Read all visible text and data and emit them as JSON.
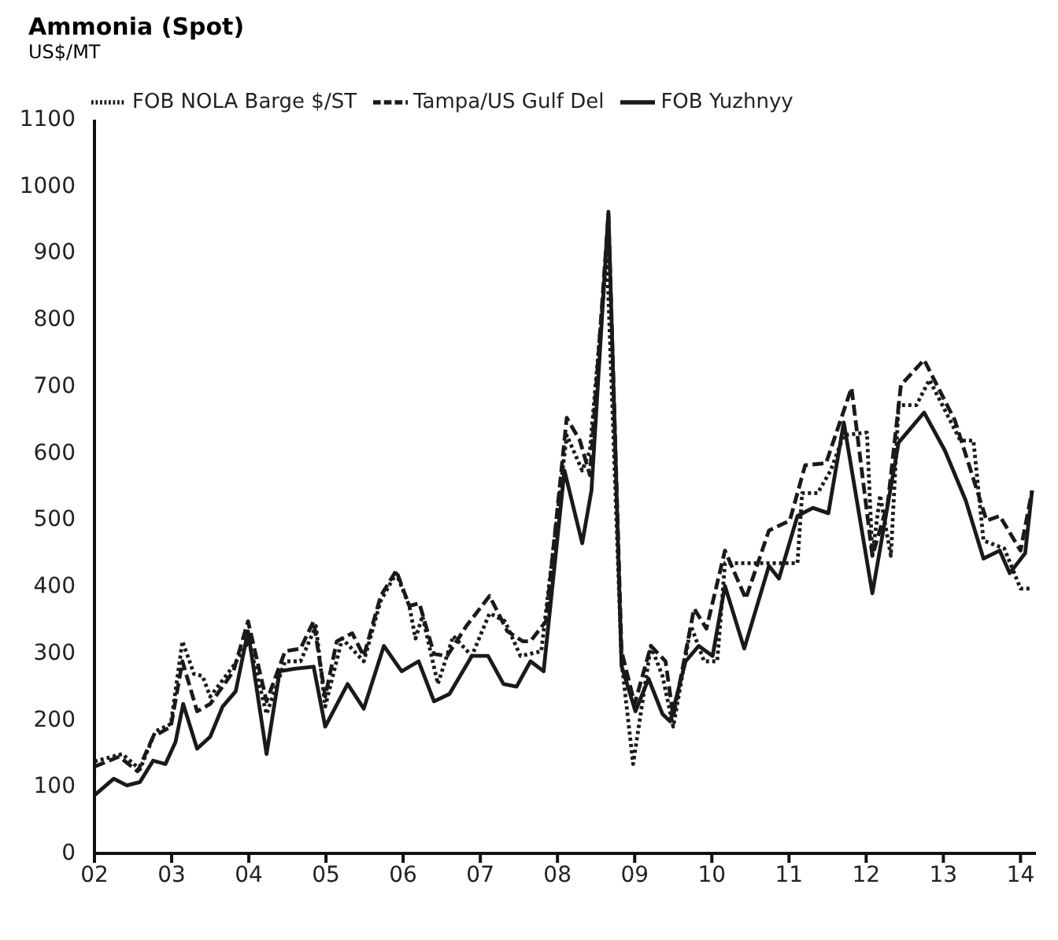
{
  "chart_data": {
    "type": "line",
    "title": "Ammonia (Spot)",
    "subtitle": "US$/MT",
    "xlim": [
      2002,
      2014.2
    ],
    "xticks": [
      {
        "value": 2002,
        "label": "02"
      },
      {
        "value": 2003,
        "label": "03"
      },
      {
        "value": 2004,
        "label": "04"
      },
      {
        "value": 2005,
        "label": "05"
      },
      {
        "value": 2006,
        "label": "06"
      },
      {
        "value": 2007,
        "label": "07"
      },
      {
        "value": 2008,
        "label": "08"
      },
      {
        "value": 2009,
        "label": "09"
      },
      {
        "value": 2010,
        "label": "10"
      },
      {
        "value": 2011,
        "label": "11"
      },
      {
        "value": 2012,
        "label": "12"
      },
      {
        "value": 2013,
        "label": "13"
      },
      {
        "value": 2014,
        "label": "14"
      }
    ],
    "ylim": [
      0,
      1100
    ],
    "yticks": [
      0,
      100,
      200,
      300,
      400,
      500,
      600,
      700,
      800,
      900,
      1000,
      1100
    ],
    "grid": false,
    "legend": "top left",
    "marker": "none",
    "series": [
      {
        "name": "FOB NOLA Barge $/ST",
        "color": "#1a1a1a",
        "line_style": "dotted",
        "x": [
          2002.0,
          2002.36,
          2002.59,
          2002.79,
          2002.99,
          2003.14,
          2003.29,
          2003.4,
          2003.5,
          2003.8,
          2004.0,
          2004.23,
          2004.47,
          2004.67,
          2004.87,
          2004.99,
          2005.21,
          2005.49,
          2005.71,
          2005.91,
          2006.08,
          2006.16,
          2006.25,
          2006.45,
          2006.65,
          2006.89,
          2007.12,
          2007.32,
          2007.52,
          2007.79,
          2008.12,
          2008.32,
          2008.42,
          2008.64,
          2008.83,
          2008.98,
          2009.21,
          2009.36,
          2009.5,
          2009.73,
          2009.9,
          2010.07,
          2010.17,
          2011.11,
          2011.17,
          2011.37,
          2011.54,
          2011.71,
          2012.01,
          2012.08,
          2012.18,
          2012.32,
          2012.42,
          2012.65,
          2012.82,
          2013.22,
          2013.39,
          2013.52,
          2013.79,
          2014.0,
          2014.15
        ],
        "values": [
          138,
          149,
          126,
          183,
          194,
          318,
          269,
          266,
          235,
          281,
          318,
          209,
          288,
          288,
          341,
          220,
          322,
          288,
          379,
          420,
          371,
          322,
          356,
          254,
          326,
          296,
          360,
          348,
          296,
          303,
          627,
          574,
          604,
          898,
          288,
          134,
          311,
          266,
          190,
          341,
          288,
          288,
          435,
          435,
          540,
          540,
          574,
          627,
          631,
          446,
          537,
          446,
          672,
          672,
          710,
          619,
          619,
          469,
          457,
          397,
          397
        ]
      },
      {
        "name": "Tampa/US Gulf Del",
        "color": "#1a1a1a",
        "line_style": "dashed",
        "x": [
          2002.0,
          2002.32,
          2002.56,
          2002.76,
          2002.99,
          2003.14,
          2003.33,
          2003.5,
          2003.8,
          2003.99,
          2004.23,
          2004.47,
          2004.67,
          2004.84,
          2004.99,
          2005.14,
          2005.34,
          2005.49,
          2005.71,
          2005.91,
          2006.08,
          2006.21,
          2006.4,
          2006.57,
          2006.82,
          2007.12,
          2007.35,
          2007.55,
          2007.65,
          2007.85,
          2008.12,
          2008.29,
          2008.42,
          2008.66,
          2008.83,
          2009.0,
          2009.21,
          2009.4,
          2009.5,
          2009.77,
          2009.93,
          2010.17,
          2010.44,
          2010.74,
          2011.01,
          2011.21,
          2011.48,
          2011.81,
          2012.08,
          2012.28,
          2012.45,
          2012.75,
          2013.15,
          2013.56,
          2013.73,
          2014.0,
          2014.15
        ],
        "values": [
          130,
          145,
          123,
          175,
          190,
          288,
          213,
          224,
          273,
          348,
          228,
          303,
          307,
          348,
          235,
          318,
          330,
          296,
          386,
          424,
          371,
          375,
          299,
          296,
          341,
          386,
          333,
          318,
          318,
          348,
          653,
          619,
          567,
          958,
          303,
          224,
          311,
          288,
          205,
          367,
          337,
          454,
          382,
          484,
          499,
          582,
          585,
          698,
          446,
          525,
          702,
          740,
          649,
          499,
          506,
          454,
          544
        ]
      },
      {
        "name": "FOB Yuzhnyy",
        "color": "#1a1a1a",
        "line_style": "solid",
        "x": [
          2002.0,
          2002.25,
          2002.42,
          2002.59,
          2002.76,
          2002.92,
          2003.05,
          2003.15,
          2003.33,
          2003.5,
          2003.66,
          2003.83,
          2003.99,
          2004.23,
          2004.4,
          2004.6,
          2004.84,
          2004.99,
          2005.28,
          2005.49,
          2005.75,
          2005.98,
          2006.2,
          2006.4,
          2006.6,
          2006.89,
          2007.1,
          2007.3,
          2007.47,
          2007.65,
          2007.82,
          2008.09,
          2008.32,
          2008.44,
          2008.66,
          2008.83,
          2009.01,
          2009.18,
          2009.36,
          2009.46,
          2009.66,
          2009.83,
          2010.01,
          2010.17,
          2010.42,
          2010.74,
          2010.87,
          2011.11,
          2011.31,
          2011.51,
          2011.71,
          2012.08,
          2012.42,
          2012.75,
          2013.02,
          2013.29,
          2013.52,
          2013.73,
          2013.86,
          2014.06,
          2014.15
        ],
        "values": [
          87,
          112,
          102,
          107,
          139,
          134,
          167,
          224,
          157,
          175,
          220,
          243,
          333,
          149,
          273,
          277,
          280,
          190,
          254,
          217,
          311,
          273,
          288,
          228,
          239,
          296,
          296,
          254,
          250,
          288,
          273,
          574,
          465,
          544,
          962,
          281,
          213,
          262,
          209,
          198,
          288,
          311,
          296,
          401,
          307,
          431,
          412,
          506,
          518,
          510,
          646,
          390,
          616,
          661,
          604,
          529,
          442,
          454,
          420,
          450,
          544
        ]
      }
    ]
  }
}
